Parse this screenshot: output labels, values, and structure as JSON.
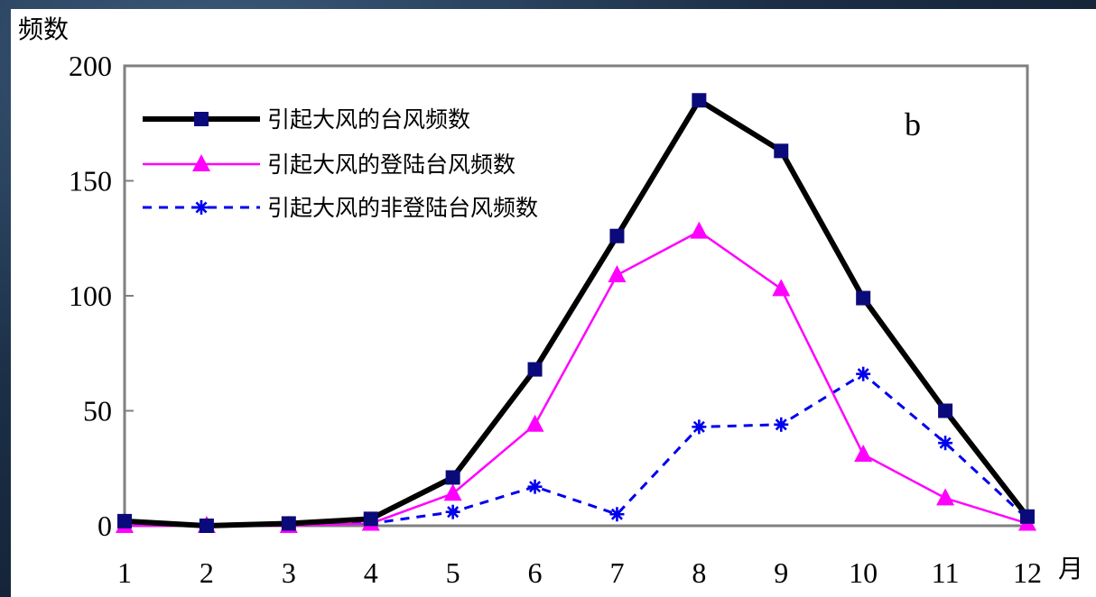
{
  "chart_data": {
    "type": "line",
    "title": "",
    "panel_label": "b",
    "ylabel": "频数",
    "xlabel": "月",
    "x": [
      1,
      2,
      3,
      4,
      5,
      6,
      7,
      8,
      9,
      10,
      11,
      12
    ],
    "x_tick_labels": [
      "1",
      "2",
      "3",
      "4",
      "5",
      "6",
      "7",
      "8",
      "9",
      "10",
      "11",
      "12"
    ],
    "ylim": [
      0,
      200
    ],
    "y_ticks": [
      0,
      50,
      100,
      150,
      200
    ],
    "y_tick_labels": [
      "0",
      "50",
      "100",
      "150",
      "200"
    ],
    "grid": false,
    "legend_position": "top-left",
    "series": [
      {
        "name": "引起大风的台风频数",
        "values": [
          2,
          0,
          1,
          3,
          21,
          68,
          126,
          185,
          163,
          99,
          50,
          4
        ],
        "color": "#000000",
        "marker": "square",
        "marker_color": "#0a0a7a",
        "line_style": "solid"
      },
      {
        "name": "引起大风的登陆台风频数",
        "values": [
          0,
          0,
          0,
          1,
          14,
          44,
          109,
          128,
          103,
          31,
          12,
          1
        ],
        "color": "#ff00ff",
        "marker": "triangle",
        "marker_color": "#ff00ff",
        "line_style": "solid"
      },
      {
        "name": "引起大风的非登陆台风频数",
        "values": [
          2,
          0,
          1,
          1,
          6,
          17,
          5,
          43,
          44,
          66,
          36,
          3
        ],
        "color": "#0000ee",
        "marker": "asterisk",
        "marker_color": "#0000ee",
        "line_style": "dashed"
      }
    ]
  }
}
